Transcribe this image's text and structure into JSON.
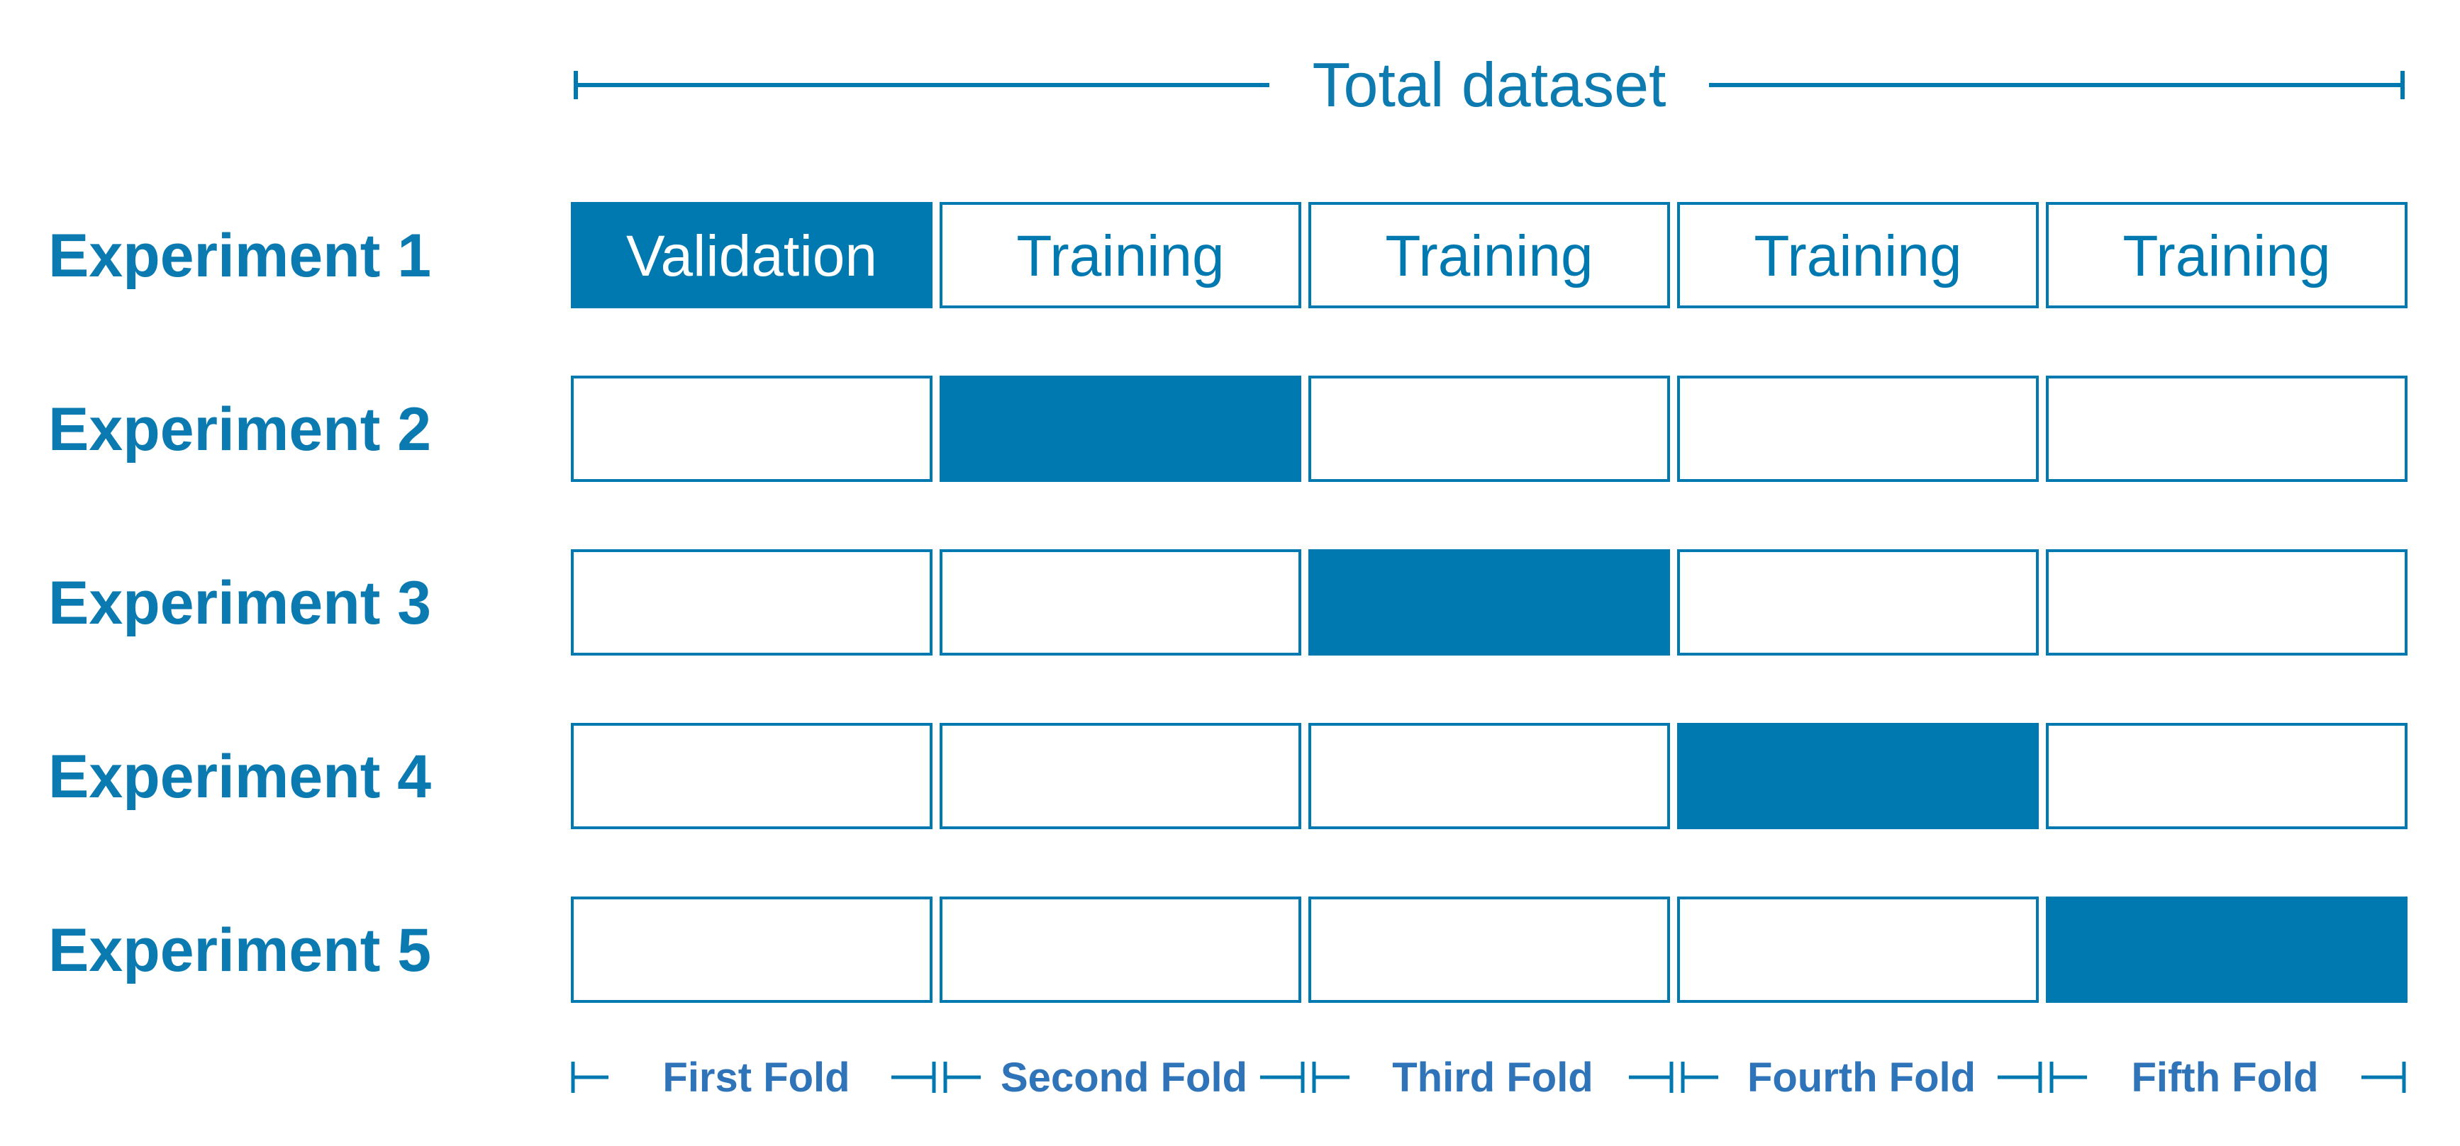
{
  "colors": {
    "accent": "#0079b0",
    "row_label": "#0a7ab0",
    "fold_label": "#2f74b8",
    "background": "#ffffff"
  },
  "total_label": "Total dataset",
  "experiments": [
    {
      "label": "Experiment 1",
      "validation_fold": 1,
      "cells": [
        "Validation",
        "Training",
        "Training",
        "Training",
        "Training"
      ]
    },
    {
      "label": "Experiment 2",
      "validation_fold": 2,
      "cells": [
        "",
        "",
        "",
        "",
        ""
      ]
    },
    {
      "label": "Experiment 3",
      "validation_fold": 3,
      "cells": [
        "",
        "",
        "",
        "",
        ""
      ]
    },
    {
      "label": "Experiment 4",
      "validation_fold": 4,
      "cells": [
        "",
        "",
        "",
        "",
        ""
      ]
    },
    {
      "label": "Experiment 5",
      "validation_fold": 5,
      "cells": [
        "",
        "",
        "",
        "",
        ""
      ]
    }
  ],
  "folds": [
    "First Fold",
    "Second Fold",
    "Third Fold",
    "Fourth Fold",
    "Fifth Fold"
  ]
}
